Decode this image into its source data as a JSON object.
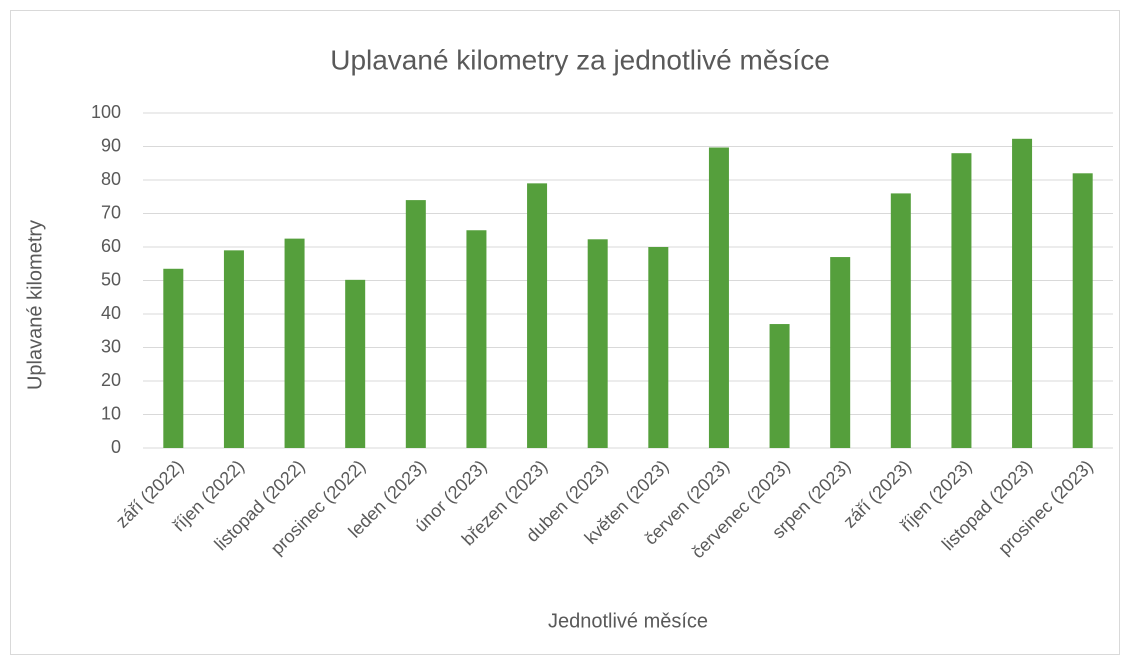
{
  "chart_data": {
    "type": "bar",
    "title": "Uplavané kilometry za jednotlivé měsíce",
    "x_label": "Jednotlivé měsíce",
    "y_label": "Uplavané kilometry",
    "categories": [
      "září (2022)",
      "říjen (2022)",
      "listopad (2022)",
      "prosinec (2022)",
      "leden (2023)",
      "únor (2023)",
      "březen (2023)",
      "duben (2023)",
      "květen (2023)",
      "červen (2023)",
      "červenec (2023)",
      "srpen (2023)",
      "září (2023)",
      "říjen (2023)",
      "listopad (2023)",
      "prosinec (2023)"
    ],
    "values": [
      53.5,
      59,
      62.5,
      50.2,
      74,
      65,
      79,
      62.3,
      60,
      89.7,
      37,
      57,
      76,
      88,
      92.3,
      82
    ],
    "color": "#559f3c",
    "ylim": [
      0,
      100
    ],
    "yticks": [
      0,
      10,
      20,
      30,
      40,
      50,
      60,
      70,
      80,
      90,
      100
    ],
    "grid": true
  }
}
